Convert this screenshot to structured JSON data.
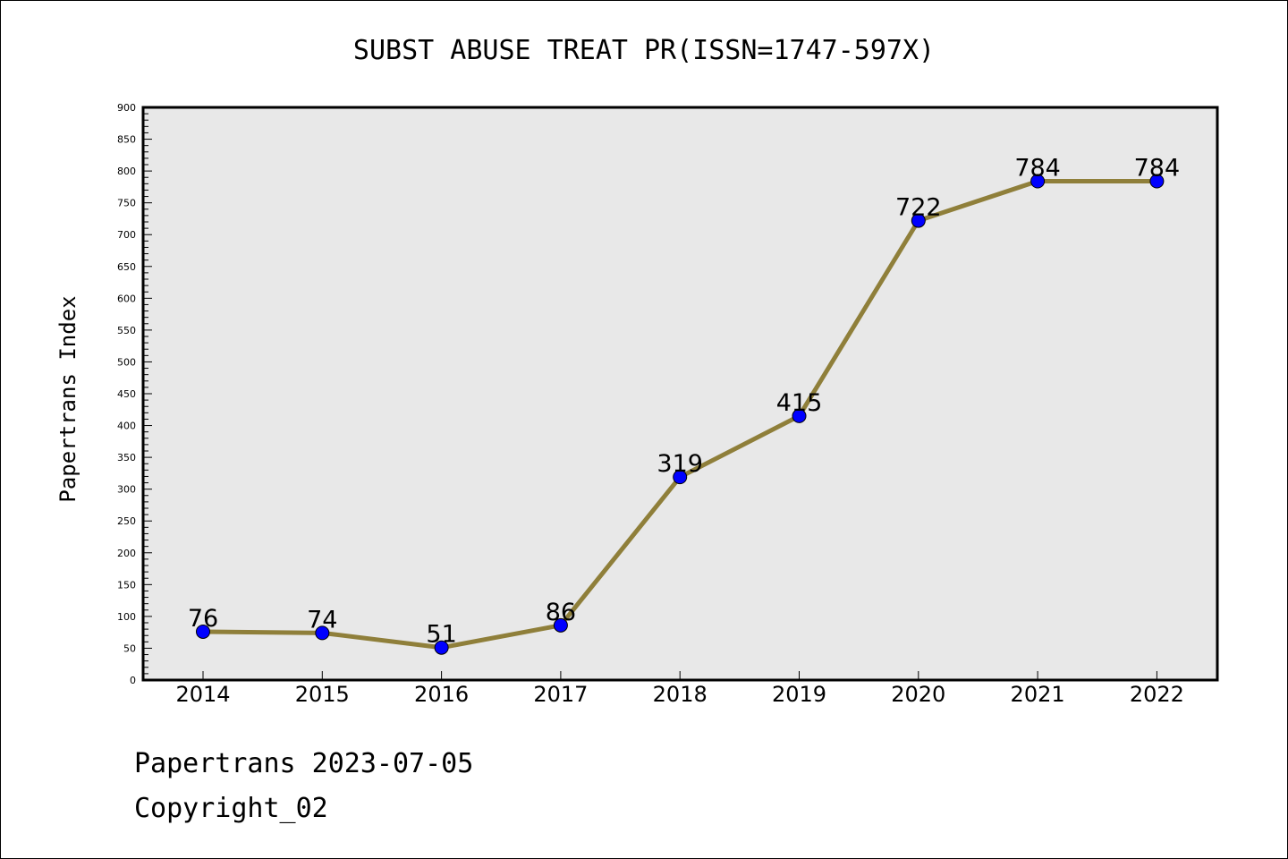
{
  "chart_data": {
    "type": "line",
    "title": "SUBST ABUSE TREAT PR(ISSN=1747-597X)",
    "xlabel": "",
    "ylabel": "Papertrans Index",
    "categories": [
      "2014",
      "2015",
      "2016",
      "2017",
      "2018",
      "2019",
      "2020",
      "2021",
      "2022"
    ],
    "series": [
      {
        "values": [
          76,
          74,
          51,
          86,
          319,
          415,
          722,
          784,
          784
        ],
        "data_labels": [
          "76",
          "74",
          "51",
          "86",
          "319",
          "415",
          "722",
          "784",
          "784"
        ]
      }
    ],
    "ylim": [
      0,
      900
    ],
    "yticks": [
      "0",
      "50",
      "100",
      "150",
      "200",
      "250",
      "300",
      "350",
      "400",
      "450",
      "500",
      "550",
      "600",
      "650",
      "700",
      "750",
      "800",
      "850",
      "900"
    ],
    "grid": false,
    "legend": "none",
    "colors": {
      "line": "#8f7f3a",
      "marker": "#0000ff",
      "plot_background": "#e8e8e8"
    }
  },
  "footer": {
    "line1": "Papertrans 2023-07-05",
    "line2": "Copyright_02"
  }
}
